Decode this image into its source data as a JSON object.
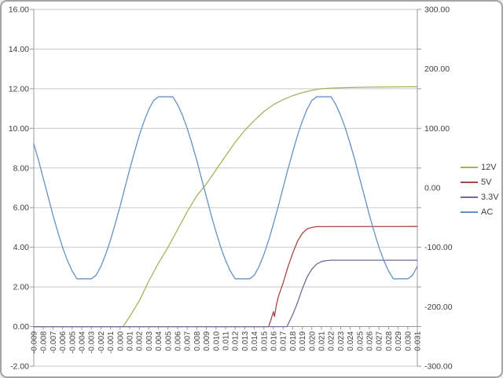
{
  "chart": {
    "frame": "excel-style-chart",
    "text_color": "#3f3f3f",
    "grid_color": "#c9c9c9",
    "axis_color": "#9a9a9a"
  },
  "chart_data": {
    "type": "line",
    "title": "",
    "xlabel": "",
    "ylabel": "",
    "grid": true,
    "legend_position": "right",
    "x_range": [
      -0.009,
      0.031
    ],
    "x_ticks": [
      "-0.009",
      "-0.008",
      "-0.007",
      "-0.006",
      "-0.005",
      "-0.004",
      "-0.003",
      "-0.002",
      "-0.001",
      "0.000",
      "0.001",
      "0.002",
      "0.003",
      "0.004",
      "0.005",
      "0.006",
      "0.007",
      "0.008",
      "0.009",
      "0.010",
      "0.011",
      "0.012",
      "0.013",
      "0.014",
      "0.015",
      "0.016",
      "0.017",
      "0.018",
      "0.019",
      "0.020",
      "0.021",
      "0.022",
      "0.023",
      "0.024",
      "0.025",
      "0.026",
      "0.027",
      "0.028",
      "0.029",
      "0.030",
      "0.031"
    ],
    "left_axis": {
      "min": -2,
      "max": 16,
      "step": 2,
      "tick_labels": [
        "16.00",
        "14.00",
        "12.00",
        "10.00",
        "8.00",
        "6.00",
        "4.00",
        "2.00",
        "0.00",
        "-2.00"
      ]
    },
    "right_axis": {
      "min": -300,
      "max": 300,
      "step": 100,
      "tick_labels": [
        "300.00",
        "200.00",
        "100.00",
        "0.00",
        "-100.00",
        "-200.00",
        "-300.00"
      ]
    },
    "series": [
      {
        "name": "12V",
        "axis": "left",
        "color": "#a2b35c",
        "x": [
          -0.009,
          0.0003,
          0.001,
          0.002,
          0.003,
          0.004,
          0.005,
          0.006,
          0.007,
          0.008,
          0.009,
          0.01,
          0.011,
          0.012,
          0.013,
          0.014,
          0.015,
          0.016,
          0.017,
          0.018,
          0.019,
          0.02,
          0.021,
          0.022,
          0.024,
          0.026,
          0.028,
          0.031
        ],
        "y": [
          0,
          0,
          0.5,
          1.3,
          2.3,
          3.2,
          4.0,
          4.9,
          5.8,
          6.6,
          7.2,
          7.9,
          8.6,
          9.3,
          9.9,
          10.4,
          10.85,
          11.2,
          11.45,
          11.65,
          11.8,
          11.92,
          12.0,
          12.03,
          12.06,
          12.08,
          12.09,
          12.1
        ]
      },
      {
        "name": "5V",
        "axis": "left",
        "color": "#aa4643",
        "x": [
          -0.009,
          0.0155,
          0.016,
          0.0161,
          0.0163,
          0.0165,
          0.017,
          0.0175,
          0.018,
          0.0185,
          0.019,
          0.0195,
          0.02,
          0.0205,
          0.031
        ],
        "y": [
          0,
          0,
          0.75,
          0.5,
          1.1,
          1.5,
          2.2,
          3.0,
          3.7,
          4.3,
          4.7,
          4.93,
          5.0,
          5.04,
          5.05
        ]
      },
      {
        "name": "3.3V",
        "axis": "left",
        "color": "#77699a",
        "x": [
          -0.009,
          0.0174,
          0.018,
          0.0185,
          0.019,
          0.0195,
          0.02,
          0.0205,
          0.021,
          0.0215,
          0.022,
          0.031
        ],
        "y": [
          0,
          0,
          0.6,
          1.2,
          1.9,
          2.5,
          2.9,
          3.15,
          3.28,
          3.33,
          3.35,
          3.35
        ]
      },
      {
        "name": "AC",
        "axis": "right",
        "color": "#6591c2",
        "x_start": -0.009,
        "x_step": 0.0005,
        "y": [
          74,
          46,
          15,
          -15,
          -46,
          -74,
          -100,
          -122,
          -140,
          -153,
          -153,
          -153,
          -153,
          -147,
          -132,
          -112,
          -88,
          -60,
          -31,
          0,
          31,
          60,
          88,
          112,
          132,
          147,
          153,
          153,
          153,
          153,
          140,
          122,
          100,
          74,
          46,
          15,
          -15,
          -46,
          -74,
          -100,
          -122,
          -140,
          -153,
          -153,
          -153,
          -153,
          -147,
          -132,
          -112,
          -88,
          -60,
          -31,
          0,
          31,
          60,
          88,
          112,
          132,
          147,
          153,
          153,
          153,
          153,
          140,
          122,
          100,
          74,
          46,
          15,
          -15,
          -46,
          -74,
          -100,
          -122,
          -140,
          -153,
          -153,
          -153,
          -153,
          -147,
          -132
        ]
      }
    ]
  }
}
